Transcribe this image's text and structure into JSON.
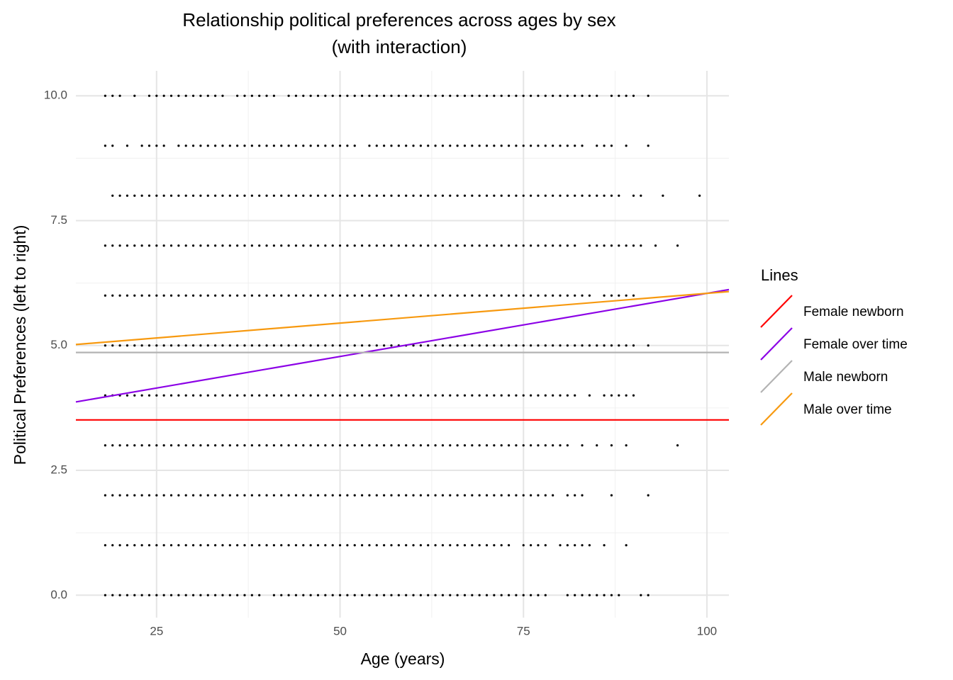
{
  "chart_data": {
    "type": "scatter",
    "title": "Relationship political preferences across ages by sex\n(with interaction)",
    "x_label": "Age (years)",
    "y_label": "Political Preferences (left to right)",
    "legend_title": "Lines",
    "xlim": [
      14,
      103
    ],
    "ylim": [
      -0.45,
      10.5
    ],
    "xticks": [
      25,
      50,
      75,
      100
    ],
    "yticks": [
      {
        "value": 0,
        "label": "0.0"
      },
      2.5,
      {
        "value": 5,
        "label": "5.0"
      },
      7.5,
      {
        "value": 10,
        "label": "10.0"
      }
    ],
    "minor_xticks": [
      37.5,
      62.5,
      87.5
    ],
    "minor_yticks": [
      1.25,
      3.75,
      6.25,
      8.75
    ],
    "grid": true,
    "point_color": "#000000",
    "points": [
      {
        "y": 10,
        "x": [
          18,
          19,
          20,
          22,
          24,
          25,
          26,
          27,
          28,
          29,
          30,
          31,
          32,
          33,
          34,
          36,
          37,
          38,
          39,
          40,
          41,
          43,
          44,
          45,
          46,
          47,
          48,
          49,
          50,
          51,
          52,
          53,
          54,
          55,
          56,
          57,
          58,
          59,
          60,
          61,
          62,
          63,
          64,
          65,
          66,
          67,
          68,
          69,
          70,
          71,
          72,
          73,
          74,
          75,
          76,
          77,
          78,
          79,
          80,
          81,
          82,
          83,
          84,
          85,
          87,
          88,
          89,
          90,
          92
        ]
      },
      {
        "y": 9,
        "x": [
          18,
          19,
          21,
          23,
          24,
          25,
          26,
          28,
          29,
          30,
          31,
          32,
          33,
          34,
          35,
          36,
          37,
          38,
          39,
          40,
          41,
          42,
          43,
          44,
          45,
          46,
          47,
          48,
          49,
          50,
          51,
          52,
          54,
          55,
          56,
          57,
          58,
          59,
          60,
          61,
          62,
          63,
          64,
          65,
          66,
          67,
          68,
          69,
          70,
          71,
          72,
          73,
          74,
          75,
          76,
          77,
          78,
          79,
          80,
          81,
          82,
          83,
          85,
          86,
          87,
          89,
          92
        ]
      },
      {
        "y": 8,
        "x": [
          19,
          20,
          21,
          22,
          23,
          24,
          25,
          26,
          27,
          28,
          29,
          30,
          31,
          32,
          33,
          34,
          35,
          36,
          37,
          38,
          39,
          40,
          41,
          42,
          43,
          44,
          45,
          46,
          47,
          48,
          49,
          50,
          51,
          52,
          53,
          54,
          55,
          56,
          57,
          58,
          59,
          60,
          61,
          62,
          63,
          64,
          65,
          66,
          67,
          68,
          69,
          70,
          71,
          72,
          73,
          74,
          75,
          76,
          77,
          78,
          79,
          80,
          81,
          82,
          83,
          84,
          85,
          86,
          87,
          88,
          90,
          91,
          94,
          99
        ]
      },
      {
        "y": 7,
        "x": [
          18,
          19,
          20,
          21,
          22,
          23,
          24,
          25,
          26,
          27,
          28,
          29,
          30,
          31,
          32,
          33,
          34,
          35,
          36,
          37,
          38,
          39,
          40,
          41,
          42,
          43,
          44,
          45,
          46,
          47,
          48,
          49,
          50,
          51,
          52,
          53,
          54,
          55,
          56,
          57,
          58,
          59,
          60,
          61,
          62,
          63,
          64,
          65,
          66,
          67,
          68,
          69,
          70,
          71,
          72,
          73,
          74,
          75,
          76,
          77,
          78,
          79,
          80,
          81,
          82,
          84,
          85,
          86,
          87,
          88,
          89,
          90,
          91,
          93,
          96
        ]
      },
      {
        "y": 6,
        "x": [
          18,
          19,
          20,
          21,
          22,
          23,
          24,
          25,
          26,
          27,
          28,
          29,
          30,
          31,
          32,
          33,
          34,
          35,
          36,
          37,
          38,
          39,
          40,
          41,
          42,
          43,
          44,
          45,
          46,
          47,
          48,
          49,
          50,
          51,
          52,
          53,
          54,
          55,
          56,
          57,
          58,
          59,
          60,
          61,
          62,
          63,
          64,
          65,
          66,
          67,
          68,
          69,
          70,
          71,
          72,
          73,
          74,
          75,
          76,
          77,
          78,
          79,
          80,
          81,
          82,
          83,
          84,
          86,
          87,
          88,
          89,
          90
        ]
      },
      {
        "y": 5,
        "x": [
          18,
          19,
          20,
          21,
          22,
          23,
          24,
          25,
          26,
          27,
          28,
          29,
          30,
          31,
          32,
          33,
          34,
          35,
          36,
          37,
          38,
          39,
          40,
          41,
          42,
          43,
          44,
          45,
          46,
          47,
          48,
          49,
          50,
          51,
          52,
          53,
          54,
          55,
          56,
          57,
          58,
          59,
          60,
          61,
          62,
          63,
          64,
          65,
          66,
          67,
          68,
          69,
          70,
          71,
          72,
          73,
          74,
          75,
          76,
          77,
          78,
          79,
          80,
          81,
          82,
          83,
          84,
          85,
          86,
          87,
          88,
          89,
          90,
          92
        ]
      },
      {
        "y": 4,
        "x": [
          18,
          19,
          20,
          21,
          22,
          23,
          24,
          25,
          26,
          27,
          28,
          29,
          30,
          31,
          32,
          33,
          34,
          35,
          36,
          37,
          38,
          39,
          40,
          41,
          42,
          43,
          44,
          45,
          46,
          47,
          48,
          49,
          50,
          51,
          52,
          53,
          54,
          55,
          56,
          57,
          58,
          59,
          60,
          61,
          62,
          63,
          64,
          65,
          66,
          67,
          68,
          69,
          70,
          71,
          72,
          73,
          74,
          75,
          76,
          77,
          78,
          79,
          80,
          81,
          82,
          84,
          86,
          87,
          88,
          89,
          90
        ]
      },
      {
        "y": 3,
        "x": [
          18,
          19,
          20,
          21,
          22,
          23,
          24,
          25,
          26,
          27,
          28,
          29,
          30,
          31,
          32,
          33,
          34,
          35,
          36,
          37,
          38,
          39,
          40,
          41,
          42,
          43,
          44,
          45,
          46,
          47,
          48,
          49,
          50,
          51,
          52,
          53,
          54,
          55,
          56,
          57,
          58,
          59,
          60,
          61,
          62,
          63,
          64,
          65,
          66,
          67,
          68,
          69,
          70,
          71,
          72,
          73,
          74,
          75,
          76,
          77,
          78,
          79,
          80,
          81,
          83,
          85,
          87,
          89,
          96
        ]
      },
      {
        "y": 2,
        "x": [
          18,
          19,
          20,
          21,
          22,
          23,
          24,
          25,
          26,
          27,
          28,
          29,
          30,
          31,
          32,
          33,
          34,
          35,
          36,
          37,
          38,
          39,
          40,
          41,
          42,
          43,
          44,
          45,
          46,
          47,
          48,
          49,
          50,
          51,
          52,
          53,
          54,
          55,
          56,
          57,
          58,
          59,
          60,
          61,
          62,
          63,
          64,
          65,
          66,
          67,
          68,
          69,
          70,
          71,
          72,
          73,
          74,
          75,
          76,
          77,
          78,
          79,
          81,
          82,
          83,
          87,
          92
        ]
      },
      {
        "y": 1,
        "x": [
          18,
          19,
          20,
          21,
          22,
          23,
          24,
          25,
          26,
          27,
          28,
          29,
          30,
          31,
          32,
          33,
          34,
          35,
          36,
          37,
          38,
          39,
          40,
          41,
          42,
          43,
          44,
          45,
          46,
          47,
          48,
          49,
          50,
          51,
          52,
          53,
          54,
          55,
          56,
          57,
          58,
          59,
          60,
          61,
          62,
          63,
          64,
          65,
          66,
          67,
          68,
          69,
          70,
          71,
          72,
          73,
          75,
          76,
          77,
          78,
          80,
          81,
          82,
          83,
          84,
          86,
          89
        ]
      },
      {
        "y": 0,
        "x": [
          18,
          19,
          20,
          21,
          22,
          23,
          24,
          25,
          26,
          27,
          28,
          29,
          30,
          31,
          32,
          33,
          34,
          35,
          36,
          37,
          38,
          39,
          41,
          42,
          43,
          44,
          45,
          46,
          47,
          48,
          49,
          50,
          51,
          52,
          53,
          54,
          55,
          56,
          57,
          58,
          59,
          60,
          61,
          62,
          63,
          64,
          65,
          66,
          67,
          68,
          69,
          70,
          71,
          72,
          73,
          74,
          75,
          76,
          77,
          78,
          81,
          82,
          83,
          84,
          85,
          86,
          87,
          88,
          91,
          92
        ]
      }
    ],
    "series": [
      {
        "name": "Female newborn",
        "color": "#ff0000",
        "x": [
          14,
          103
        ],
        "values": [
          3.51,
          3.51
        ]
      },
      {
        "name": "Female over time",
        "color": "#8b00e6",
        "x": [
          14,
          103
        ],
        "values": [
          3.87,
          6.12
        ]
      },
      {
        "name": "Male newborn",
        "color": "#b3b3b3",
        "x": [
          14,
          103
        ],
        "values": [
          4.86,
          4.86
        ]
      },
      {
        "name": "Male over time",
        "color": "#f7990f",
        "x": [
          14,
          103
        ],
        "values": [
          5.02,
          6.08
        ]
      }
    ]
  }
}
